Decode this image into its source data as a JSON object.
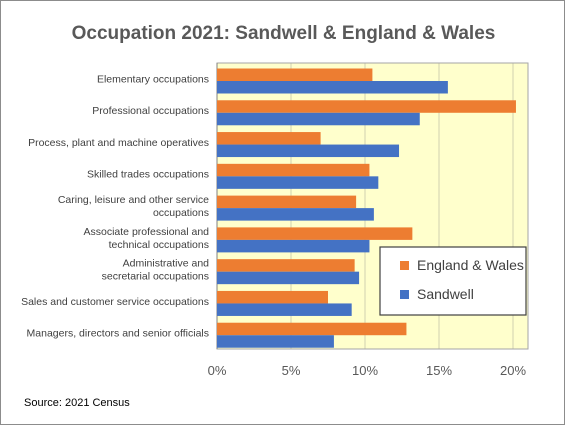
{
  "chart_data": {
    "type": "bar",
    "orientation": "horizontal",
    "title": "Occupation 2021: Sandwell & England & Wales",
    "categories": [
      [
        "Elementary occupations"
      ],
      [
        "Professional occupations"
      ],
      [
        "Process, plant and machine operatives"
      ],
      [
        "Skilled trades occupations"
      ],
      [
        "Caring, leisure and other service",
        "occupations"
      ],
      [
        "Associate professional and",
        "technical occupations"
      ],
      [
        "Administrative and",
        "secretarial occupations"
      ],
      [
        "Sales and customer service occupations"
      ],
      [
        "Managers, directors and senior officials"
      ]
    ],
    "series": [
      {
        "name": "England & Wales",
        "color": "#ED7D31",
        "values": [
          10.5,
          20.2,
          7.0,
          10.3,
          9.4,
          13.2,
          9.3,
          7.5,
          12.8
        ]
      },
      {
        "name": "Sandwell",
        "color": "#4472C4",
        "values": [
          15.6,
          13.7,
          12.3,
          10.9,
          10.6,
          10.3,
          9.6,
          9.1,
          7.9
        ]
      }
    ],
    "xlim": [
      0,
      20
    ],
    "xticks": [
      "0%",
      "5%",
      "10%",
      "15%",
      "20%"
    ],
    "xlabel": "",
    "ylabel": "",
    "grid": true,
    "plot_background": "#FFFFCC",
    "legend": "right"
  },
  "source_note": "Source: 2021 Census"
}
